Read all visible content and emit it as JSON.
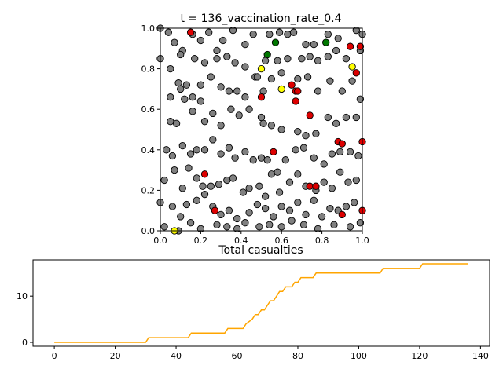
{
  "chart_data": [
    {
      "type": "scatter",
      "title": "t = 136_vaccination_rate_0.4",
      "xlim": [
        0,
        1
      ],
      "ylim": [
        0,
        1
      ],
      "x_ticks": [
        "0.0",
        "0.2",
        "0.4",
        "0.6",
        "0.8",
        "1.0"
      ],
      "y_ticks": [
        "0.0",
        "0.2",
        "0.4",
        "0.6",
        "0.8",
        "1.0"
      ],
      "grid": false,
      "colors": {
        "susceptible": "#808080",
        "infected": "#dd0000",
        "vaccinated": "#ffff00",
        "recovered": "#007700"
      },
      "series": [
        {
          "status": "infected",
          "color": "#dd0000",
          "points": [
            [
              0.15,
              0.98
            ],
            [
              0.65,
              0.72
            ],
            [
              0.67,
              0.69
            ],
            [
              0.94,
              0.91
            ],
            [
              0.97,
              0.78
            ],
            [
              0.67,
              0.64
            ],
            [
              0.5,
              0.66
            ],
            [
              0.74,
              0.57
            ],
            [
              0.56,
              0.39
            ],
            [
              0.22,
              0.28
            ],
            [
              0.88,
              0.44
            ],
            [
              0.9,
              0.43
            ],
            [
              0.74,
              0.22
            ],
            [
              0.77,
              0.22
            ],
            [
              0.27,
              0.1
            ],
            [
              0.9,
              0.08
            ],
            [
              1.0,
              0.1
            ],
            [
              1.0,
              0.44
            ],
            [
              0.99,
              0.91
            ],
            [
              0.68,
              0.69
            ]
          ]
        },
        {
          "status": "vaccinated",
          "color": "#ffff00",
          "points": [
            [
              0.5,
              0.8
            ],
            [
              0.6,
              0.7
            ],
            [
              0.95,
              0.81
            ],
            [
              0.07,
              0.0
            ]
          ]
        },
        {
          "status": "recovered",
          "color": "#007700",
          "points": [
            [
              0.53,
              0.87
            ],
            [
              0.57,
              0.93
            ],
            [
              0.82,
              0.93
            ]
          ]
        },
        {
          "status": "susceptible",
          "color": "#808080",
          "points": [
            [
              0.0,
              1.0
            ],
            [
              0.04,
              0.98
            ],
            [
              0.07,
              0.93
            ],
            [
              0.11,
              0.89
            ],
            [
              0.16,
              0.97
            ],
            [
              0.2,
              0.94
            ],
            [
              0.24,
              0.98
            ],
            [
              0.28,
              0.89
            ],
            [
              0.31,
              0.94
            ],
            [
              0.36,
              0.99
            ],
            [
              0.42,
              0.92
            ],
            [
              0.46,
              0.97
            ],
            [
              0.54,
              0.97
            ],
            [
              0.59,
              0.98
            ],
            [
              0.63,
              0.97
            ],
            [
              0.66,
              0.98
            ],
            [
              0.72,
              0.92
            ],
            [
              0.76,
              0.92
            ],
            [
              0.83,
              0.97
            ],
            [
              0.88,
              0.95
            ],
            [
              0.97,
              0.99
            ],
            [
              1.0,
              0.97
            ],
            [
              0.0,
              0.85
            ],
            [
              0.05,
              0.8
            ],
            [
              0.1,
              0.87
            ],
            [
              0.17,
              0.85
            ],
            [
              0.22,
              0.83
            ],
            [
              0.28,
              0.85
            ],
            [
              0.33,
              0.86
            ],
            [
              0.37,
              0.83
            ],
            [
              0.42,
              0.81
            ],
            [
              0.47,
              0.76
            ],
            [
              0.52,
              0.84
            ],
            [
              0.58,
              0.84
            ],
            [
              0.63,
              0.85
            ],
            [
              0.7,
              0.85
            ],
            [
              0.74,
              0.86
            ],
            [
              0.78,
              0.84
            ],
            [
              0.83,
              0.86
            ],
            [
              0.87,
              0.89
            ],
            [
              0.92,
              0.85
            ],
            [
              0.99,
              0.89
            ],
            [
              0.05,
              0.66
            ],
            [
              0.09,
              0.73
            ],
            [
              0.1,
              0.7
            ],
            [
              0.13,
              0.72
            ],
            [
              0.16,
              0.66
            ],
            [
              0.2,
              0.72
            ],
            [
              0.25,
              0.76
            ],
            [
              0.3,
              0.71
            ],
            [
              0.34,
              0.69
            ],
            [
              0.38,
              0.69
            ],
            [
              0.42,
              0.66
            ],
            [
              0.48,
              0.76
            ],
            [
              0.51,
              0.69
            ],
            [
              0.55,
              0.75
            ],
            [
              0.6,
              0.78
            ],
            [
              0.68,
              0.75
            ],
            [
              0.73,
              0.76
            ],
            [
              0.78,
              0.69
            ],
            [
              0.84,
              0.74
            ],
            [
              0.9,
              0.69
            ],
            [
              0.95,
              0.74
            ],
            [
              0.99,
              0.65
            ],
            [
              0.05,
              0.54
            ],
            [
              0.08,
              0.53
            ],
            [
              0.12,
              0.65
            ],
            [
              0.16,
              0.59
            ],
            [
              0.2,
              0.64
            ],
            [
              0.22,
              0.54
            ],
            [
              0.26,
              0.58
            ],
            [
              0.3,
              0.52
            ],
            [
              0.35,
              0.6
            ],
            [
              0.39,
              0.57
            ],
            [
              0.44,
              0.6
            ],
            [
              0.5,
              0.56
            ],
            [
              0.51,
              0.53
            ],
            [
              0.55,
              0.52
            ],
            [
              0.6,
              0.5
            ],
            [
              0.68,
              0.49
            ],
            [
              0.72,
              0.47
            ],
            [
              0.77,
              0.48
            ],
            [
              0.83,
              0.56
            ],
            [
              0.87,
              0.53
            ],
            [
              0.92,
              0.56
            ],
            [
              0.97,
              0.56
            ],
            [
              0.03,
              0.4
            ],
            [
              0.06,
              0.37
            ],
            [
              0.11,
              0.42
            ],
            [
              0.15,
              0.38
            ],
            [
              0.18,
              0.4
            ],
            [
              0.22,
              0.4
            ],
            [
              0.26,
              0.45
            ],
            [
              0.3,
              0.38
            ],
            [
              0.34,
              0.41
            ],
            [
              0.37,
              0.36
            ],
            [
              0.42,
              0.39
            ],
            [
              0.46,
              0.35
            ],
            [
              0.5,
              0.36
            ],
            [
              0.53,
              0.35
            ],
            [
              0.58,
              0.29
            ],
            [
              0.62,
              0.35
            ],
            [
              0.67,
              0.4
            ],
            [
              0.71,
              0.41
            ],
            [
              0.76,
              0.36
            ],
            [
              0.81,
              0.33
            ],
            [
              0.85,
              0.38
            ],
            [
              0.89,
              0.39
            ],
            [
              0.94,
              0.39
            ],
            [
              0.98,
              0.37
            ],
            [
              0.02,
              0.25
            ],
            [
              0.07,
              0.3
            ],
            [
              0.11,
              0.21
            ],
            [
              0.14,
              0.31
            ],
            [
              0.18,
              0.26
            ],
            [
              0.21,
              0.22
            ],
            [
              0.25,
              0.22
            ],
            [
              0.29,
              0.23
            ],
            [
              0.33,
              0.25
            ],
            [
              0.36,
              0.26
            ],
            [
              0.41,
              0.19
            ],
            [
              0.44,
              0.21
            ],
            [
              0.49,
              0.22
            ],
            [
              0.52,
              0.17
            ],
            [
              0.55,
              0.28
            ],
            [
              0.59,
              0.19
            ],
            [
              0.64,
              0.24
            ],
            [
              0.68,
              0.28
            ],
            [
              0.72,
              0.22
            ],
            [
              0.77,
              0.2
            ],
            [
              0.81,
              0.24
            ],
            [
              0.85,
              0.21
            ],
            [
              0.89,
              0.29
            ],
            [
              0.93,
              0.24
            ],
            [
              0.97,
              0.25
            ],
            [
              0.0,
              0.14
            ],
            [
              0.06,
              0.12
            ],
            [
              0.1,
              0.07
            ],
            [
              0.13,
              0.13
            ],
            [
              0.18,
              0.15
            ],
            [
              0.22,
              0.18
            ],
            [
              0.26,
              0.12
            ],
            [
              0.3,
              0.08
            ],
            [
              0.34,
              0.1
            ],
            [
              0.38,
              0.06
            ],
            [
              0.44,
              0.09
            ],
            [
              0.48,
              0.13
            ],
            [
              0.52,
              0.11
            ],
            [
              0.56,
              0.07
            ],
            [
              0.6,
              0.12
            ],
            [
              0.64,
              0.1
            ],
            [
              0.68,
              0.14
            ],
            [
              0.72,
              0.08
            ],
            [
              0.76,
              0.15
            ],
            [
              0.8,
              0.07
            ],
            [
              0.84,
              0.11
            ],
            [
              0.88,
              0.1
            ],
            [
              0.92,
              0.12
            ],
            [
              0.96,
              0.14
            ],
            [
              0.02,
              0.02
            ],
            [
              0.09,
              0.0
            ],
            [
              0.15,
              0.04
            ],
            [
              0.2,
              0.01
            ],
            [
              0.28,
              0.03
            ],
            [
              0.33,
              0.02
            ],
            [
              0.38,
              0.01
            ],
            [
              0.42,
              0.04
            ],
            [
              0.49,
              0.02
            ],
            [
              0.54,
              0.03
            ],
            [
              0.6,
              0.02
            ],
            [
              0.65,
              0.05
            ],
            [
              0.71,
              0.03
            ],
            [
              0.78,
              0.01
            ],
            [
              0.86,
              0.03
            ],
            [
              0.94,
              0.02
            ],
            [
              0.99,
              0.04
            ]
          ]
        }
      ]
    },
    {
      "type": "line",
      "title": "Total casualties",
      "color": "#ffa500",
      "xlim": [
        -7,
        143
      ],
      "ylim": [
        -0.85,
        17.85
      ],
      "x_ticks": [
        0,
        20,
        40,
        60,
        80,
        100,
        120,
        140
      ],
      "y_ticks": [
        0,
        10
      ],
      "x": [
        0,
        30,
        31,
        44,
        45,
        56,
        57,
        62,
        63,
        65,
        66,
        67,
        68,
        69,
        70,
        71,
        72,
        73,
        74,
        75,
        76,
        77,
        78,
        79,
        80,
        81,
        82,
        83,
        84,
        85,
        86,
        107,
        108,
        120,
        121,
        136
      ],
      "y": [
        0,
        0,
        1,
        1,
        2,
        2,
        3,
        3,
        4,
        5,
        6,
        6,
        7,
        7,
        8,
        9,
        9,
        10,
        11,
        11,
        12,
        12,
        12,
        13,
        13,
        14,
        14,
        14,
        14,
        14,
        15,
        15,
        16,
        16,
        17,
        17
      ]
    }
  ]
}
